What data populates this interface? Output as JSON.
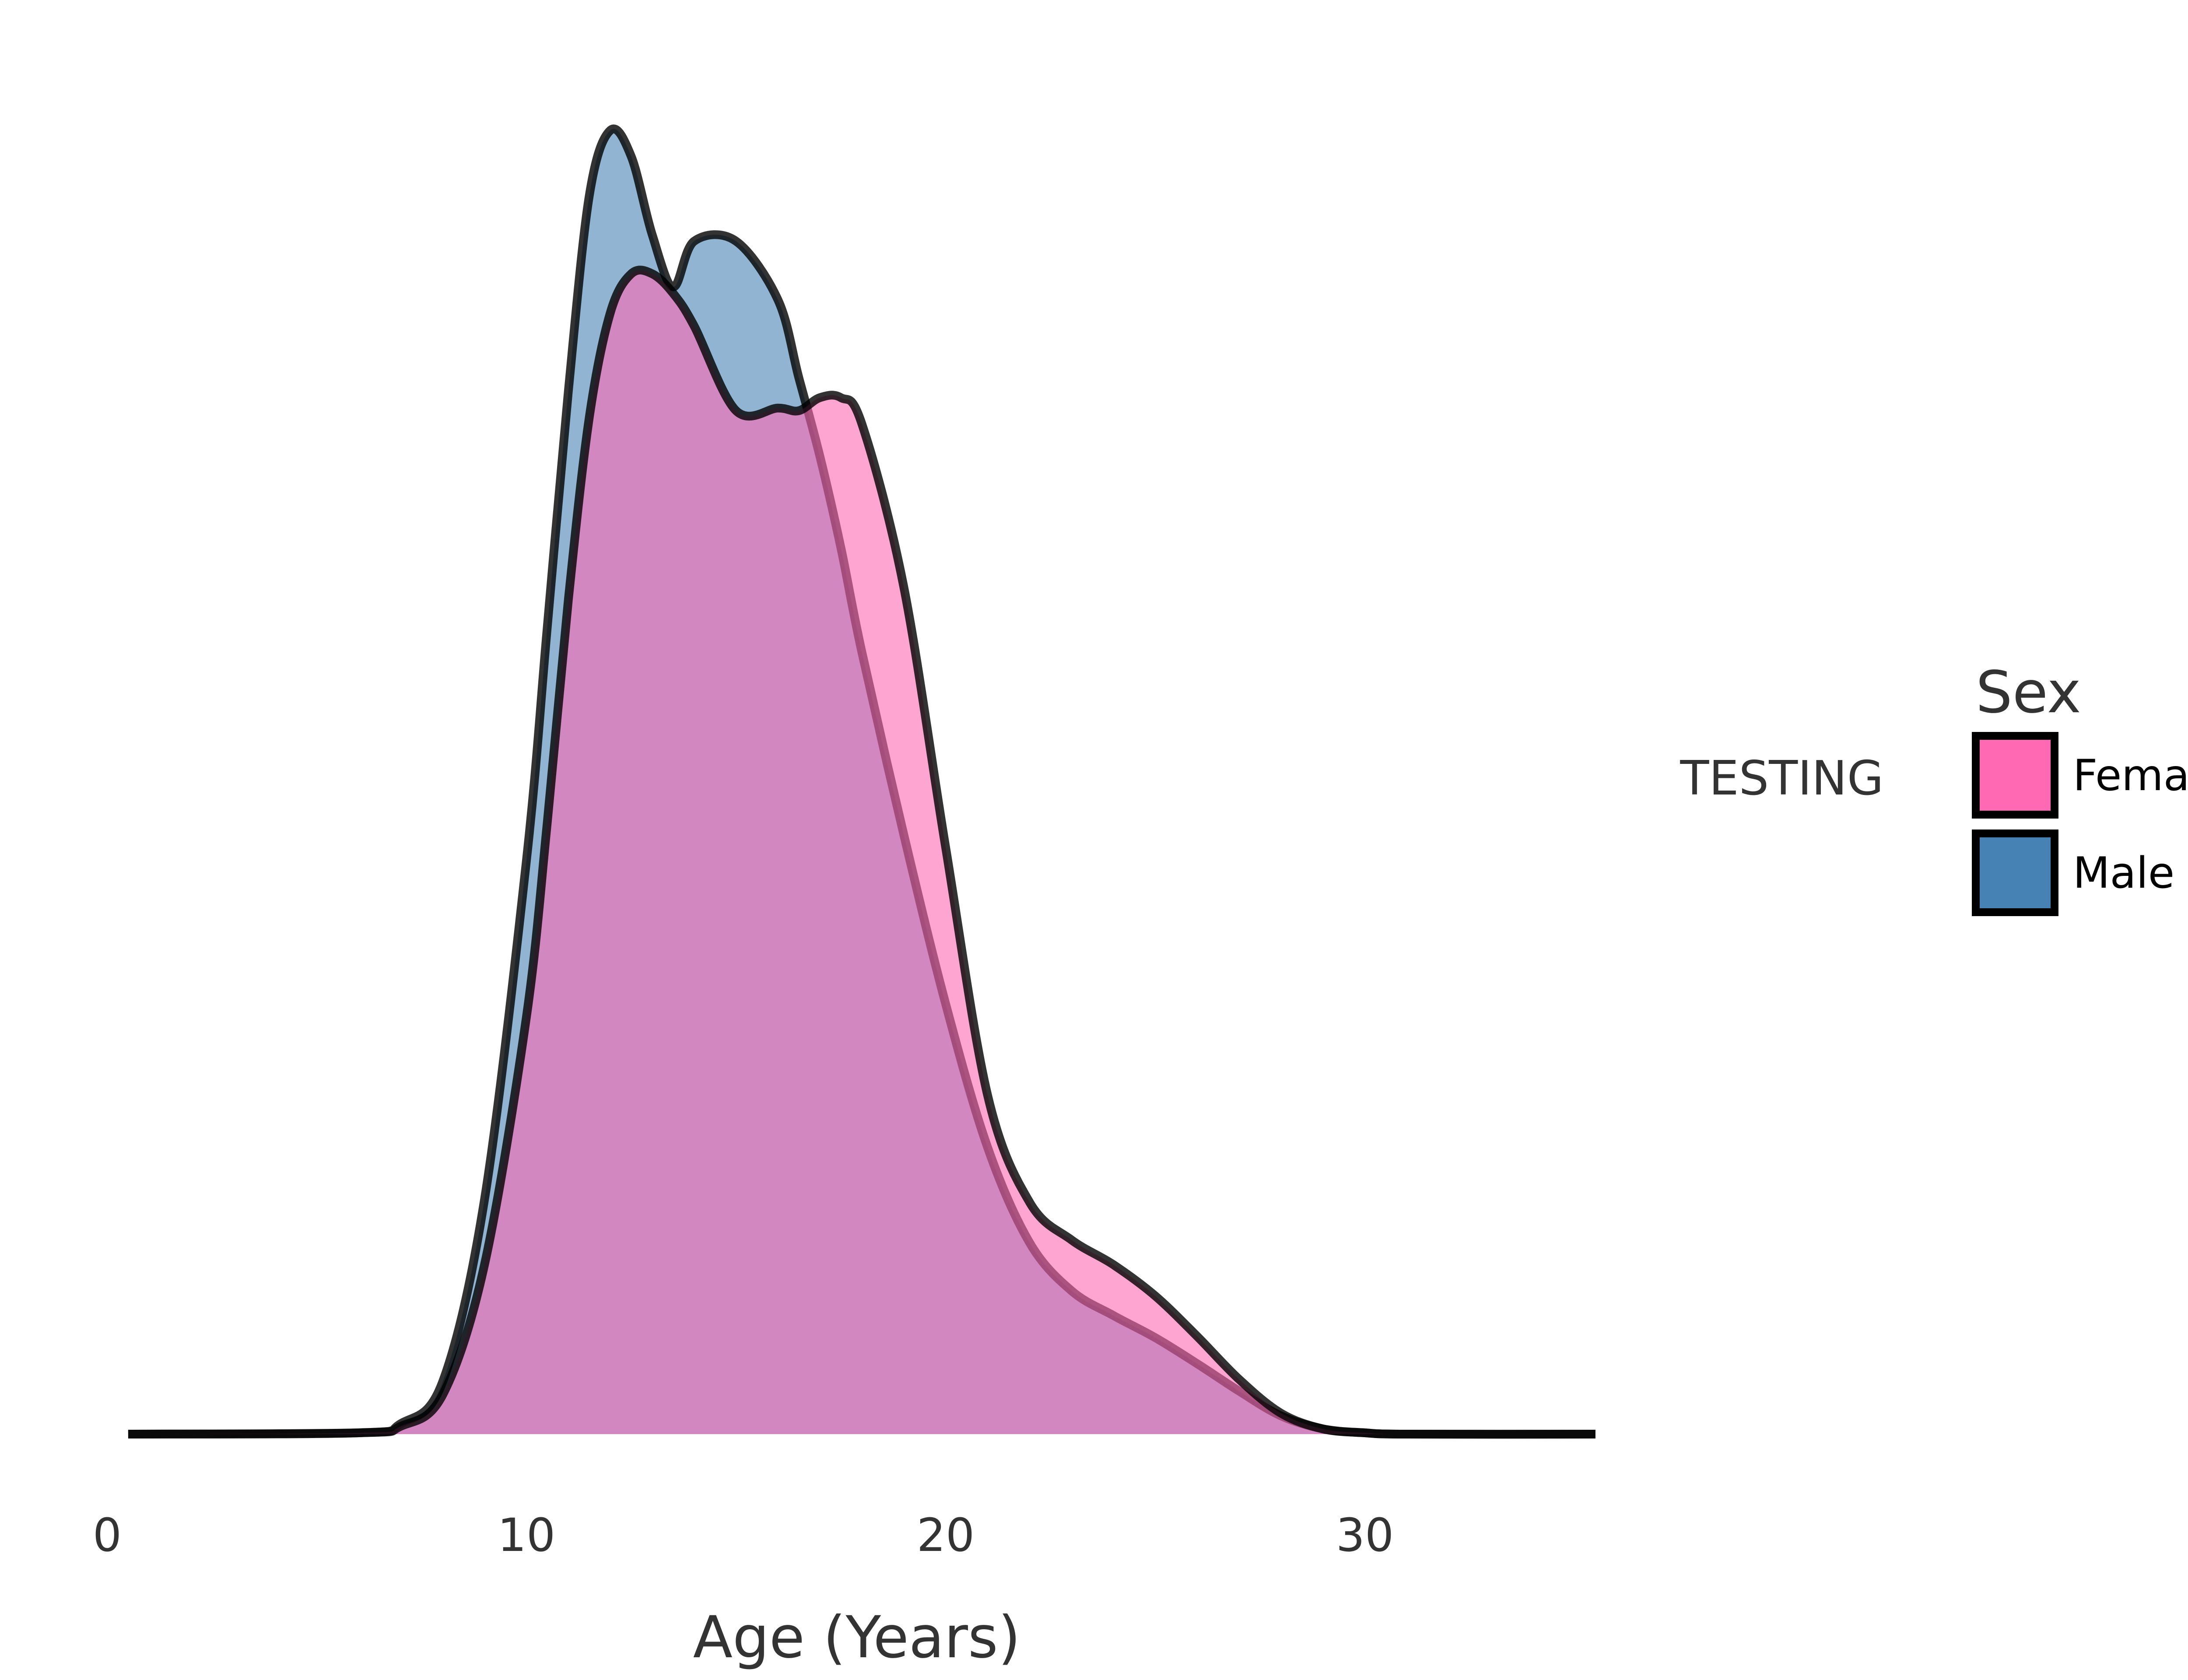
{
  "chart_data": {
    "type": "area",
    "subtype": "density",
    "title": "",
    "xlabel": "Age (Years)",
    "ylabel": "",
    "xlim": [
      0,
      35
    ],
    "x_ticks": [
      0,
      10,
      20,
      30
    ],
    "ylim": [
      0,
      0.1
    ],
    "grid": false,
    "facet_label": "TESTING",
    "legend": {
      "title": "Sex",
      "placement": "right",
      "entries": [
        {
          "name": "Female",
          "color": "#FF69B4"
        },
        {
          "name": "Male",
          "color": "#4682B4"
        }
      ]
    },
    "x": [
      0.5,
      6,
      7,
      8,
      9,
      10,
      10.5,
      11,
      11.5,
      12,
      12.5,
      13,
      13.5,
      14,
      15,
      16,
      16.5,
      17,
      17.5,
      18,
      19,
      20,
      21,
      22,
      23,
      24,
      25,
      26,
      27,
      28,
      29,
      30,
      31,
      35.5
    ],
    "series": [
      {
        "name": "Male",
        "color": "#4682B4",
        "outline": "#000000",
        "values": [
          0,
          0.0001,
          0.0008,
          0.004,
          0.018,
          0.044,
          0.062,
          0.08,
          0.095,
          0.1,
          0.098,
          0.092,
          0.088,
          0.0915,
          0.0915,
          0.087,
          0.081,
          0.075,
          0.068,
          0.06,
          0.046,
          0.033,
          0.022,
          0.0147,
          0.011,
          0.0091,
          0.0074,
          0.0054,
          0.0033,
          0.0014,
          0.0004,
          0.0001,
          0,
          0
        ]
      },
      {
        "name": "Female",
        "color": "#FF69B4",
        "outline": "#000000",
        "values": [
          0,
          0.0001,
          0.0006,
          0.003,
          0.013,
          0.032,
          0.047,
          0.064,
          0.078,
          0.086,
          0.089,
          0.089,
          0.0875,
          0.085,
          0.0785,
          0.0787,
          0.0785,
          0.0795,
          0.0795,
          0.0775,
          0.065,
          0.045,
          0.026,
          0.0178,
          0.0149,
          0.013,
          0.0106,
          0.0075,
          0.0042,
          0.0016,
          0.0004,
          0.0001,
          0,
          0
        ]
      }
    ]
  }
}
